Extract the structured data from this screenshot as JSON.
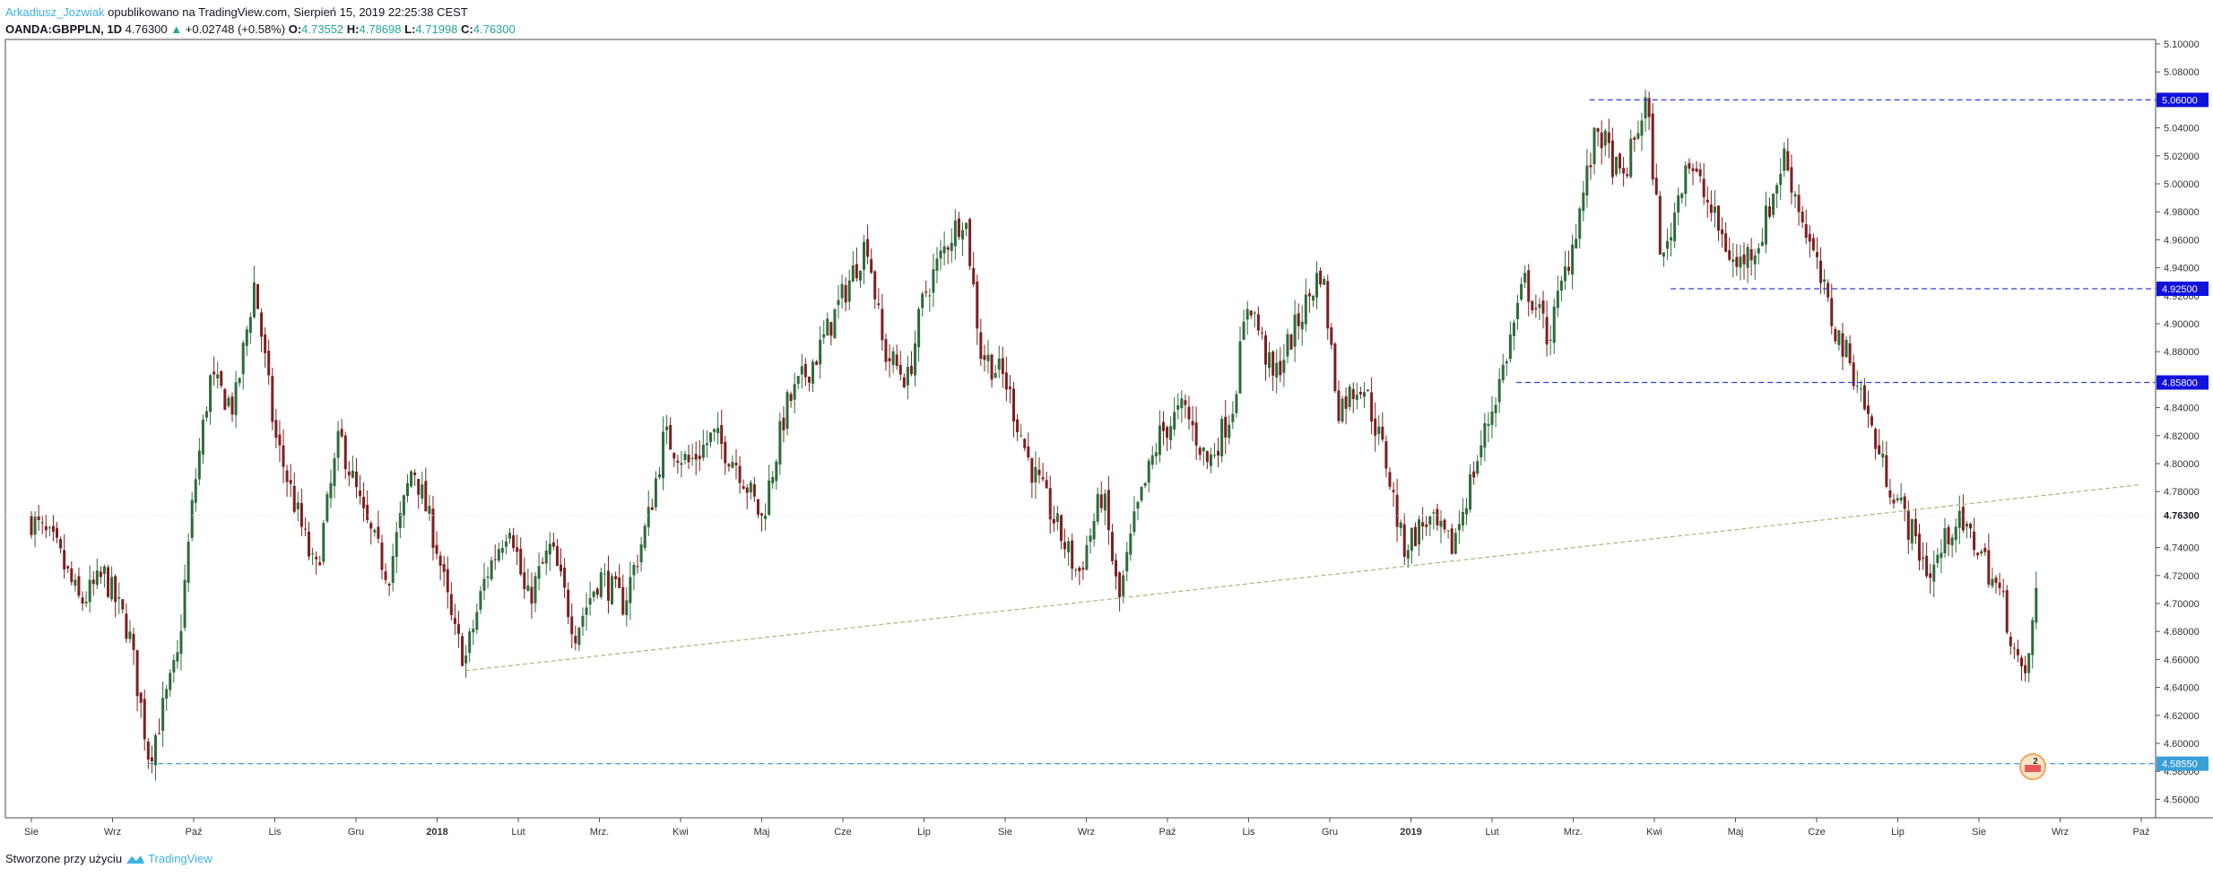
{
  "header": {
    "author": "Arkadiusz_Jozwiak",
    "published": " opublikowano na TradingView.com, Sierpień 15, 2019 22:25:38 CEST",
    "symbol": "OANDA:GBPPLN, 1D",
    "last": "4.76300",
    "arrow": "▲",
    "change": "+0.02748 (+0.58%)",
    "o_label": "O:",
    "o": "4.73552",
    "h_label": "H:",
    "h": "4.78698",
    "l_label": "L:",
    "l": "4.71998",
    "c_label": "C:",
    "c": "4.76300"
  },
  "footer": {
    "created": "Stworzone przy użyciu",
    "brand": "TradingView"
  },
  "colors": {
    "up": "#26a69a",
    "down": "#ef5350",
    "candle_up": "#2e6b3a",
    "candle_down": "#7d1f1f",
    "level_line": "#2f3fd6",
    "level_box": "#1111dd",
    "support_line": "#3b9fd8",
    "trend_line": "#a7b97a",
    "axis": "#555555"
  },
  "chart_data": {
    "type": "candlestick",
    "symbol": "OANDA:GBPPLN",
    "interval": "1D",
    "y_axis": {
      "min": 4.55,
      "max": 5.1,
      "ticks": [
        "5.10000",
        "5.08000",
        "5.06000",
        "5.04000",
        "5.02000",
        "5.00000",
        "4.98000",
        "4.96000",
        "4.94000",
        "4.92000",
        "4.90000",
        "4.88000",
        "4.86000",
        "4.84000",
        "4.82000",
        "4.80000",
        "4.78000",
        "4.74000",
        "4.72000",
        "4.70000",
        "4.68000",
        "4.66000",
        "4.64000",
        "4.62000",
        "4.60000",
        "4.58000",
        "4.56000"
      ]
    },
    "x_axis": {
      "labels": [
        {
          "label": "Sie",
          "month": 0
        },
        {
          "label": "Wrz",
          "month": 1
        },
        {
          "label": "Paź",
          "month": 2
        },
        {
          "label": "Lis",
          "month": 3
        },
        {
          "label": "Gru",
          "month": 4
        },
        {
          "label": "2018",
          "month": 5,
          "bold": true
        },
        {
          "label": "Lut",
          "month": 6
        },
        {
          "label": "Mrz.",
          "month": 7
        },
        {
          "label": "Kwi",
          "month": 8
        },
        {
          "label": "Maj",
          "month": 9
        },
        {
          "label": "Cze",
          "month": 10
        },
        {
          "label": "Lip",
          "month": 11
        },
        {
          "label": "Sie",
          "month": 12
        },
        {
          "label": "Wrz",
          "month": 13
        },
        {
          "label": "Paź",
          "month": 14
        },
        {
          "label": "Lis",
          "month": 15
        },
        {
          "label": "Gru",
          "month": 16
        },
        {
          "label": "2019",
          "month": 17,
          "bold": true
        },
        {
          "label": "Lut",
          "month": 18
        },
        {
          "label": "Mrz.",
          "month": 19
        },
        {
          "label": "Kwi",
          "month": 20
        },
        {
          "label": "Maj",
          "month": 21
        },
        {
          "label": "Cze",
          "month": 22
        },
        {
          "label": "Lip",
          "month": 23
        },
        {
          "label": "Sie",
          "month": 24
        },
        {
          "label": "Wrz",
          "month": 25
        },
        {
          "label": "Paź",
          "month": 26
        }
      ]
    },
    "close_path": [
      [
        0.0,
        4.76
      ],
      [
        0.3,
        4.74
      ],
      [
        0.6,
        4.7
      ],
      [
        0.9,
        4.72
      ],
      [
        1.2,
        4.68
      ],
      [
        1.45,
        4.59
      ],
      [
        1.6,
        4.62
      ],
      [
        1.8,
        4.66
      ],
      [
        2.0,
        4.78
      ],
      [
        2.2,
        4.86
      ],
      [
        2.5,
        4.84
      ],
      [
        2.75,
        4.93
      ],
      [
        3.0,
        4.82
      ],
      [
        3.3,
        4.76
      ],
      [
        3.5,
        4.72
      ],
      [
        3.8,
        4.82
      ],
      [
        4.1,
        4.76
      ],
      [
        4.4,
        4.72
      ],
      [
        4.7,
        4.8
      ],
      [
        5.0,
        4.74
      ],
      [
        5.2,
        4.68
      ],
      [
        5.35,
        4.66
      ],
      [
        5.6,
        4.72
      ],
      [
        5.9,
        4.76
      ],
      [
        6.1,
        4.7
      ],
      [
        6.4,
        4.74
      ],
      [
        6.7,
        4.68
      ],
      [
        7.0,
        4.72
      ],
      [
        7.3,
        4.7
      ],
      [
        7.6,
        4.76
      ],
      [
        7.8,
        4.82
      ],
      [
        8.1,
        4.8
      ],
      [
        8.4,
        4.82
      ],
      [
        8.7,
        4.8
      ],
      [
        9.0,
        4.76
      ],
      [
        9.3,
        4.84
      ],
      [
        9.7,
        4.88
      ],
      [
        10.0,
        4.92
      ],
      [
        10.3,
        4.96
      ],
      [
        10.5,
        4.88
      ],
      [
        10.8,
        4.86
      ],
      [
        11.0,
        4.92
      ],
      [
        11.3,
        4.96
      ],
      [
        11.5,
        4.98
      ],
      [
        11.7,
        4.88
      ],
      [
        12.0,
        4.86
      ],
      [
        12.3,
        4.8
      ],
      [
        12.6,
        4.76
      ],
      [
        12.9,
        4.72
      ],
      [
        13.2,
        4.78
      ],
      [
        13.4,
        4.7
      ],
      [
        13.6,
        4.76
      ],
      [
        13.9,
        4.82
      ],
      [
        14.2,
        4.84
      ],
      [
        14.5,
        4.8
      ],
      [
        14.8,
        4.84
      ],
      [
        15.0,
        4.92
      ],
      [
        15.3,
        4.86
      ],
      [
        15.6,
        4.9
      ],
      [
        15.9,
        4.94
      ],
      [
        16.1,
        4.84
      ],
      [
        16.4,
        4.86
      ],
      [
        16.7,
        4.8
      ],
      [
        16.9,
        4.74
      ],
      [
        17.2,
        4.76
      ],
      [
        17.5,
        4.74
      ],
      [
        17.8,
        4.8
      ],
      [
        18.1,
        4.86
      ],
      [
        18.4,
        4.93
      ],
      [
        18.7,
        4.89
      ],
      [
        19.0,
        4.96
      ],
      [
        19.3,
        5.04
      ],
      [
        19.6,
        5.0
      ],
      [
        19.9,
        5.06
      ],
      [
        20.1,
        4.94
      ],
      [
        20.4,
        5.02
      ],
      [
        20.7,
        4.98
      ],
      [
        21.0,
        4.94
      ],
      [
        21.3,
        4.96
      ],
      [
        21.6,
        5.02
      ],
      [
        21.9,
        4.96
      ],
      [
        22.2,
        4.9
      ],
      [
        22.5,
        4.86
      ],
      [
        22.8,
        4.8
      ],
      [
        23.1,
        4.76
      ],
      [
        23.4,
        4.72
      ],
      [
        23.7,
        4.76
      ],
      [
        24.0,
        4.74
      ],
      [
        24.3,
        4.7
      ],
      [
        24.55,
        4.64
      ],
      [
        24.7,
        4.7
      ],
      [
        24.75,
        4.76
      ]
    ],
    "levels": [
      {
        "price": 5.06,
        "label": "5.06000",
        "from_month": 19.2,
        "type": "resistance"
      },
      {
        "price": 4.925,
        "label": "4.92500",
        "from_month": 20.2,
        "type": "resistance"
      },
      {
        "price": 4.858,
        "label": "4.85800",
        "from_month": 18.3,
        "type": "resistance"
      },
      {
        "price": 4.5855,
        "label": "4.58550",
        "from_month": 1.45,
        "type": "support"
      }
    ],
    "trendline": {
      "from": [
        5.35,
        4.652
      ],
      "to": [
        26.0,
        4.785
      ]
    },
    "last_price": {
      "price": 4.763,
      "label": "4.76300"
    }
  },
  "badge": {
    "count": "2"
  }
}
